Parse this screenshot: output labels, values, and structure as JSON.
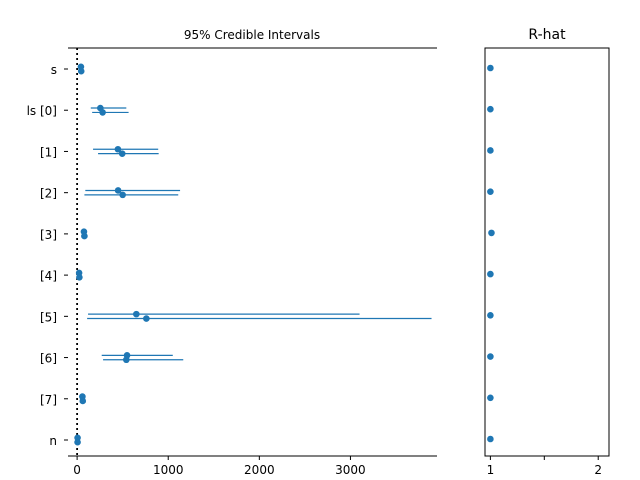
{
  "chart_data": [
    {
      "type": "forest",
      "title": "95% Credible Intervals",
      "xlabel": "",
      "ylabel": "",
      "xlim": [
        -100,
        3950
      ],
      "xticks": [
        0,
        1000,
        2000,
        3000
      ],
      "xtick_labels": [
        "0",
        "1000",
        "2000",
        "3000"
      ],
      "reference_line": {
        "x": 0,
        "style": "dotted",
        "color": "#000000"
      },
      "series_color": "#1f77b4",
      "categories": [
        "s",
        "ls [0]",
        "[1]",
        "[2]",
        "[3]",
        "[4]",
        "[5]",
        "[6]",
        "[7]",
        "n"
      ],
      "chains": [
        {
          "name": "",
          "means": [
            42,
            255,
            448,
            450,
            75,
            22,
            650,
            548,
            58,
            5
          ],
          "lower": [
            30,
            150,
            175,
            90,
            60,
            15,
            120,
            270,
            45,
            0
          ],
          "upper": [
            55,
            540,
            890,
            1130,
            100,
            30,
            3100,
            1050,
            70,
            10
          ]
        },
        {
          "name": "",
          "means": [
            45,
            280,
            495,
            500,
            80,
            25,
            760,
            540,
            62,
            5
          ],
          "lower": [
            32,
            165,
            230,
            80,
            62,
            16,
            110,
            285,
            48,
            0
          ],
          "upper": [
            58,
            565,
            895,
            1110,
            110,
            32,
            3890,
            1165,
            72,
            10
          ]
        }
      ],
      "grid": false
    },
    {
      "type": "scatter",
      "title": "R-hat",
      "xlim": [
        0.95,
        2.1
      ],
      "xticks": [
        1,
        1.5,
        2
      ],
      "xtick_labels": [
        "1",
        "",
        "2"
      ],
      "categories": [
        "s",
        "ls [0]",
        "[1]",
        "[2]",
        "[3]",
        "[4]",
        "[5]",
        "[6]",
        "[7]",
        "n"
      ],
      "values": [
        1.0,
        1.0,
        1.0,
        1.0,
        1.01,
        1.0,
        1.0,
        1.0,
        1.0,
        1.0
      ],
      "series_color": "#1f77b4",
      "grid": false
    }
  ]
}
